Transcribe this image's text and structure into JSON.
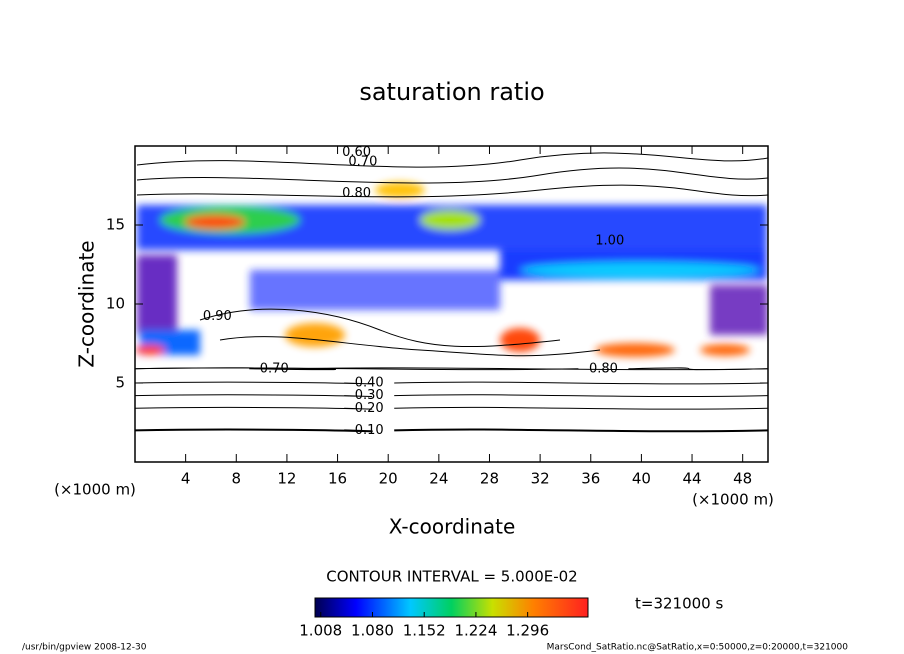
{
  "chart_data": {
    "type": "contour",
    "title": "saturation ratio",
    "x_label": "X-coordinate",
    "y_label": "Z-coordinate",
    "x_unit": "(×1000 m)",
    "y_unit": "(×1000 m)",
    "xlim": [
      0,
      50
    ],
    "ylim": [
      0,
      20
    ],
    "xticks": [
      4,
      8,
      12,
      16,
      20,
      24,
      28,
      32,
      36,
      40,
      44,
      48
    ],
    "yticks": [
      5,
      10,
      15
    ],
    "contour_labels": [
      {
        "value": 0.1,
        "label": "0.10",
        "x": 18.5,
        "z": 2.0
      },
      {
        "value": 0.2,
        "label": "0.20",
        "x": 18.5,
        "z": 3.4
      },
      {
        "value": 0.3,
        "label": "0.30",
        "x": 18.5,
        "z": 4.2
      },
      {
        "value": 0.4,
        "label": "0.40",
        "x": 18.5,
        "z": 5.0
      },
      {
        "value": 0.6,
        "label": "0.60",
        "x": 17.5,
        "z": 19.6
      },
      {
        "value": 0.7,
        "label": "0.70",
        "x": 18.0,
        "z": 19.0
      },
      {
        "value": 0.8,
        "label": "0.80",
        "x": 17.5,
        "z": 17.0
      },
      {
        "value": 1.0,
        "label": "1.00",
        "x": 37.5,
        "z": 14.0
      },
      {
        "value": 0.9,
        "label": "0.90",
        "x": 6.5,
        "z": 9.2
      },
      {
        "value": 0.7,
        "label": "0.70",
        "x": 11.0,
        "z": 5.9
      },
      {
        "value": 0.8,
        "label": "0.80",
        "x": 37.0,
        "z": 5.9
      }
    ],
    "contour_interval": "CONTOUR INTERVAL = 5.000E-02",
    "colorbar": {
      "clim": [
        1.0,
        1.38
      ],
      "ticks": [
        1.008,
        {
          "value": 1.08,
          "label": "1.080"
        },
        1.152,
        1.224,
        1.296
      ]
    },
    "time_label": "t=321000 s",
    "footer_left": "/usr/bin/gpview   2008-12-30",
    "footer_right": "MarsCond_SatRatio.nc@SatRatio,x=0:50000,z=0:20000,t=321000"
  }
}
